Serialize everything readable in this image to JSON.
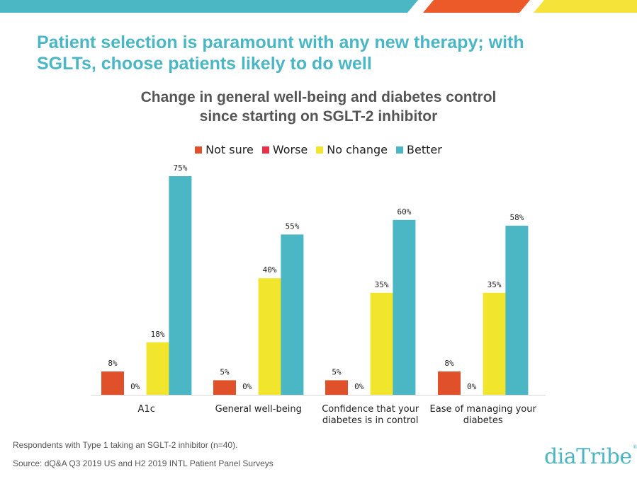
{
  "slide": {
    "title_line1": "Patient selection is paramount with any new therapy; with",
    "title_line2": "SGLTs, choose patients likely to do well",
    "footnote_respondents": "Respondents  with Type 1 taking an SGLT-2  inhibitor (n=40).",
    "footnote_source": "Source: dQ&A Q3 2019 US and H2 2019 INTL  Patient Panel Surveys",
    "logo_text": "diaTribe",
    "logo_mark": "®"
  },
  "colors": {
    "teal": "#4bb6c4",
    "orange_red": "#e0512b",
    "red": "#e8324a",
    "yellow": "#f2e52e",
    "accent_orange": "#ec5a2a",
    "accent_yellow": "#f6e33a"
  },
  "chart_data": {
    "type": "bar",
    "title_line1": "Change in general well-being and diabetes control",
    "title_line2": "since starting on SGLT-2 inhibitor",
    "categories": [
      [
        "A1c"
      ],
      [
        "General well-being"
      ],
      [
        "Confidence that your",
        "diabetes is in control"
      ],
      [
        "Ease of managing your",
        "diabetes"
      ]
    ],
    "series": [
      {
        "name": "Not sure",
        "color": "#e0512b",
        "values": [
          8,
          5,
          5,
          8
        ]
      },
      {
        "name": "Worse",
        "color": "#e8324a",
        "values": [
          0,
          0,
          0,
          0
        ]
      },
      {
        "name": "No change",
        "color": "#f2e52e",
        "values": [
          18,
          40,
          35,
          35
        ]
      },
      {
        "name": "Better",
        "color": "#4bb6c4",
        "values": [
          75,
          55,
          60,
          58
        ]
      }
    ],
    "value_suffix": "%",
    "ylim": [
      0,
      75
    ],
    "legend_position": "top",
    "grid": false
  }
}
